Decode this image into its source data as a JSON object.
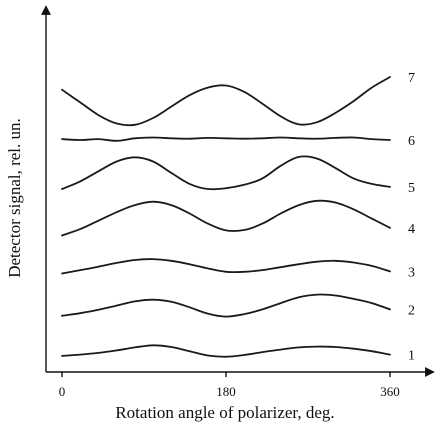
{
  "chart_data": {
    "type": "line",
    "title": "",
    "xlabel": "Rotation angle of polarizer, deg.",
    "ylabel": "Detector signal, rel. un.",
    "xlim": [
      0,
      360
    ],
    "xticks": [
      0,
      180,
      360
    ],
    "xtick_labels": [
      "0",
      "180",
      "360"
    ],
    "yticks": [],
    "ylim": [
      0,
      8
    ],
    "grid": false,
    "legend": "none",
    "series": [
      {
        "name": "1",
        "x": [
          0,
          20,
          40,
          60,
          80,
          100,
          120,
          140,
          160,
          180,
          200,
          220,
          240,
          260,
          280,
          300,
          320,
          340,
          360
        ],
        "y": [
          0.05,
          0.08,
          0.12,
          0.18,
          0.25,
          0.3,
          0.26,
          0.16,
          0.06,
          0.03,
          0.07,
          0.14,
          0.2,
          0.25,
          0.27,
          0.26,
          0.22,
          0.16,
          0.08
        ]
      },
      {
        "name": "2",
        "x": [
          0,
          20,
          40,
          60,
          80,
          100,
          120,
          140,
          160,
          180,
          200,
          220,
          240,
          260,
          280,
          300,
          320,
          340,
          360
        ],
        "y": [
          1.0,
          1.06,
          1.14,
          1.24,
          1.34,
          1.38,
          1.33,
          1.2,
          1.05,
          0.98,
          1.04,
          1.15,
          1.3,
          1.44,
          1.5,
          1.48,
          1.4,
          1.3,
          1.15
        ]
      },
      {
        "name": "3",
        "x": [
          0,
          20,
          40,
          60,
          80,
          100,
          120,
          140,
          160,
          180,
          200,
          220,
          240,
          260,
          280,
          300,
          320,
          340,
          360
        ],
        "y": [
          2.0,
          2.08,
          2.16,
          2.25,
          2.32,
          2.34,
          2.3,
          2.22,
          2.12,
          2.04,
          2.04,
          2.08,
          2.15,
          2.22,
          2.28,
          2.3,
          2.26,
          2.18,
          2.05
        ]
      },
      {
        "name": "4",
        "x": [
          0,
          20,
          40,
          60,
          80,
          100,
          120,
          140,
          160,
          180,
          200,
          220,
          240,
          260,
          280,
          300,
          320,
          340,
          360
        ],
        "y": [
          2.9,
          3.05,
          3.25,
          3.45,
          3.62,
          3.7,
          3.62,
          3.42,
          3.18,
          3.02,
          3.03,
          3.18,
          3.42,
          3.62,
          3.72,
          3.68,
          3.52,
          3.3,
          3.08
        ]
      },
      {
        "name": "5",
        "x": [
          0,
          20,
          40,
          60,
          80,
          100,
          120,
          140,
          160,
          180,
          200,
          220,
          240,
          260,
          280,
          300,
          320,
          340,
          360
        ],
        "y": [
          4.0,
          4.18,
          4.42,
          4.65,
          4.75,
          4.65,
          4.38,
          4.12,
          4.0,
          4.02,
          4.1,
          4.25,
          4.55,
          4.76,
          4.72,
          4.5,
          4.25,
          4.12,
          4.05
        ]
      },
      {
        "name": "6",
        "x": [
          0,
          20,
          40,
          60,
          80,
          100,
          120,
          140,
          160,
          180,
          200,
          220,
          240,
          260,
          280,
          300,
          320,
          340,
          360
        ],
        "y": [
          5.18,
          5.16,
          5.18,
          5.14,
          5.2,
          5.22,
          5.2,
          5.19,
          5.21,
          5.2,
          5.19,
          5.2,
          5.22,
          5.2,
          5.19,
          5.21,
          5.22,
          5.18,
          5.16
        ]
      },
      {
        "name": "7",
        "x": [
          0,
          20,
          40,
          60,
          80,
          100,
          120,
          140,
          160,
          180,
          200,
          220,
          240,
          260,
          280,
          300,
          320,
          340,
          360
        ],
        "y": [
          6.35,
          6.05,
          5.75,
          5.55,
          5.52,
          5.68,
          5.95,
          6.22,
          6.4,
          6.45,
          6.3,
          6.02,
          5.72,
          5.53,
          5.58,
          5.8,
          6.08,
          6.4,
          6.65
        ]
      }
    ]
  }
}
